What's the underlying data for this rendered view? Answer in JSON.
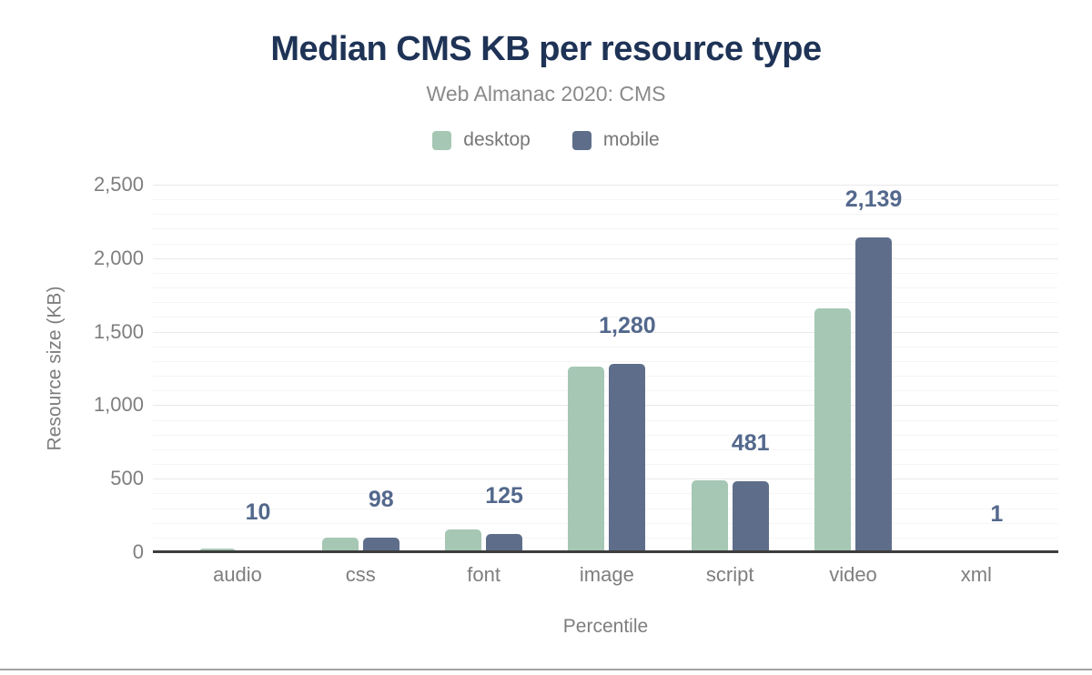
{
  "header": {
    "title": "Median CMS KB per resource type",
    "subtitle": "Web Almanac 2020: CMS"
  },
  "legend": {
    "items": [
      {
        "label": "desktop",
        "color": "#a6c7b4"
      },
      {
        "label": "mobile",
        "color": "#5e6e8a"
      }
    ]
  },
  "chart_data": {
    "type": "bar",
    "title": "Median CMS KB per resource type",
    "subtitle": "Web Almanac 2020: CMS",
    "categories": [
      "audio",
      "css",
      "font",
      "image",
      "script",
      "video",
      "xml"
    ],
    "series": [
      {
        "name": "desktop",
        "color": "#a6c7b4",
        "values": [
          25,
          100,
          152,
          1262,
          490,
          1660,
          1
        ]
      },
      {
        "name": "mobile",
        "color": "#5e6e8a",
        "values": [
          10,
          98,
          125,
          1280,
          481,
          2139,
          1
        ]
      }
    ],
    "data_labels": {
      "series": "mobile",
      "values": [
        "10",
        "98",
        "125",
        "1,280",
        "481",
        "2,139",
        "1"
      ]
    },
    "xlabel": "Percentile",
    "ylabel": "Resource size (KB)",
    "ylim": [
      0,
      2500
    ],
    "yticks": [
      {
        "value": 0,
        "label": "0"
      },
      {
        "value": 500,
        "label": "500"
      },
      {
        "value": 1000,
        "label": "1,000"
      },
      {
        "value": 1500,
        "label": "1,500"
      },
      {
        "value": 2000,
        "label": "2,000"
      },
      {
        "value": 2500,
        "label": "2,500"
      }
    ],
    "grid": {
      "minor_step": 100,
      "major_step": 500,
      "legend_position": "top"
    }
  }
}
